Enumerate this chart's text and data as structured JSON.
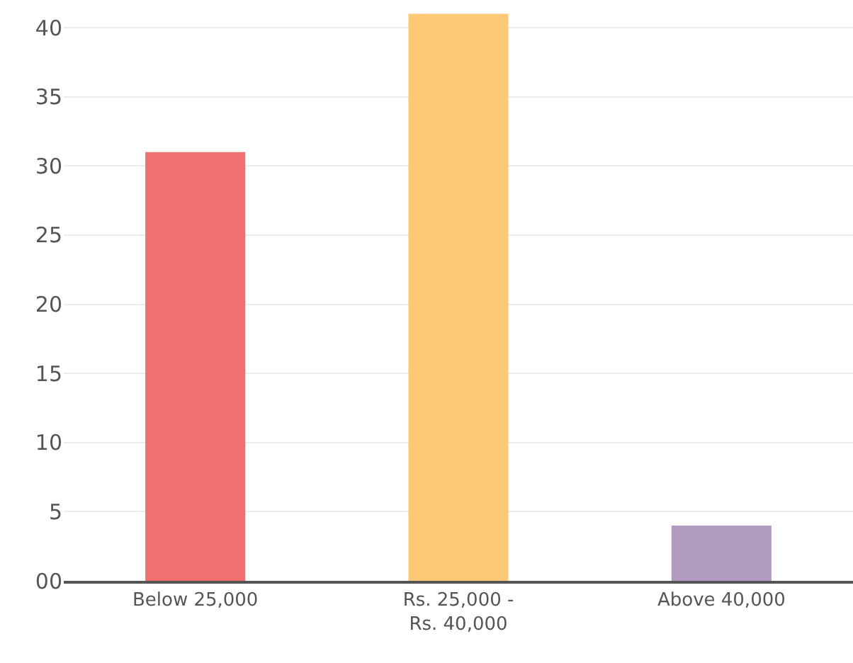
{
  "chart_data": {
    "type": "bar",
    "categories": [
      "Below 25,000",
      "Rs. 25,000 -\nRs. 40,000",
      "Above 40,000"
    ],
    "values": [
      31,
      41,
      4
    ],
    "colors": [
      "#f07070",
      "#fdc976",
      "#b29bc0"
    ],
    "ylim": [
      0,
      42
    ],
    "yticks": [
      {
        "value": 0,
        "label": "00"
      },
      5,
      10,
      15,
      20,
      25,
      30,
      35,
      40
    ],
    "grid": "y",
    "legend": false
  }
}
